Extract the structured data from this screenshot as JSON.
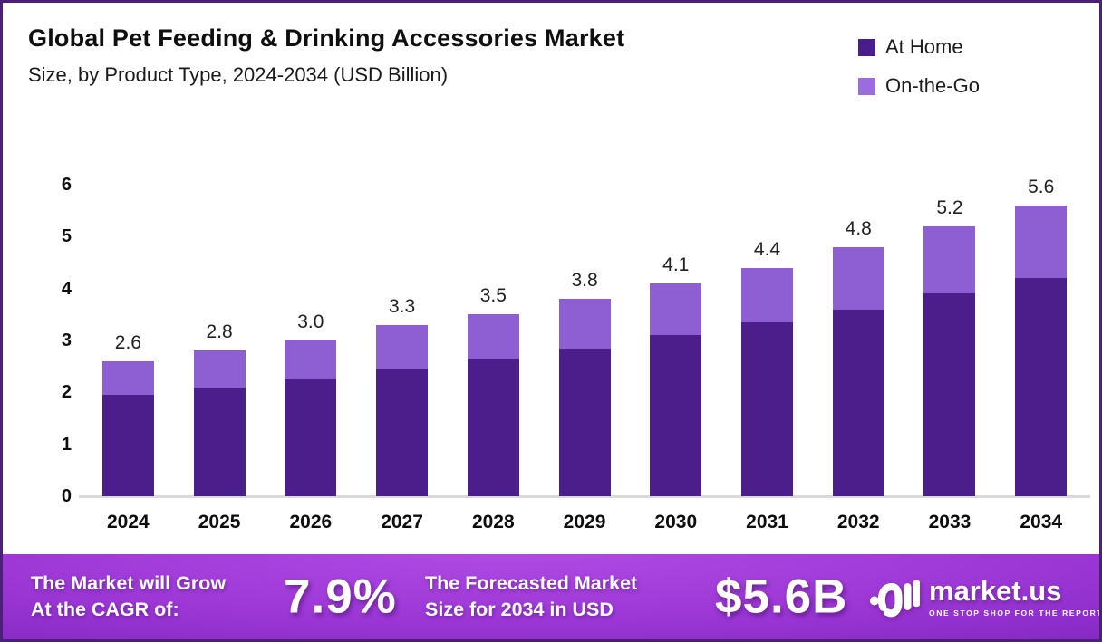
{
  "header": {
    "title": "Global Pet Feeding & Drinking Accessories Market",
    "subtitle": "Size, by Product Type, 2024-2034 (USD Billion)"
  },
  "legend": [
    {
      "label": "At Home",
      "color": "#4a1d8c"
    },
    {
      "label": "On-the-Go",
      "color": "#9b6bdf"
    }
  ],
  "chart_data": {
    "type": "bar",
    "stacked": true,
    "title": "Global Pet Feeding & Drinking Accessories Market Size, by Product Type, 2024-2034 (USD Billion)",
    "categories": [
      "2024",
      "2025",
      "2026",
      "2027",
      "2028",
      "2029",
      "2030",
      "2031",
      "2032",
      "2033",
      "2034"
    ],
    "series": [
      {
        "name": "At Home",
        "color": "#4b1e8c",
        "values": [
          1.95,
          2.1,
          2.25,
          2.45,
          2.65,
          2.85,
          3.1,
          3.35,
          3.6,
          3.9,
          4.2
        ]
      },
      {
        "name": "On-the-Go",
        "color": "#8e5fd3",
        "values": [
          0.65,
          0.7,
          0.75,
          0.85,
          0.85,
          0.95,
          1.0,
          1.05,
          1.2,
          1.3,
          1.4
        ]
      }
    ],
    "totals": [
      2.6,
      2.8,
      3.0,
      3.3,
      3.5,
      3.8,
      4.1,
      4.4,
      4.8,
      5.2,
      5.6
    ],
    "total_labels": [
      "2.6",
      "2.8",
      "3.0",
      "3.3",
      "3.5",
      "3.8",
      "4.1",
      "4.4",
      "4.8",
      "5.2",
      "5.6"
    ],
    "xlabel": "",
    "ylabel": "",
    "ylim": [
      0,
      6
    ],
    "yticks": [
      0,
      1,
      2,
      3,
      4,
      5,
      6
    ],
    "grid": false,
    "legend_position": "top-right"
  },
  "footer": {
    "cagr_label": "The Market will Grow\nAt the CAGR of:",
    "cagr_value": "7.9%",
    "forecast_label": "The Forecasted Market\nSize for 2034 in USD",
    "forecast_value": "$5.6B",
    "logo_text": "market.us",
    "logo_tagline": "ONE STOP SHOP FOR THE REPORTS"
  },
  "colors": {
    "at_home": "#4b1e8c",
    "on_the_go": "#8e5fd3",
    "frame_border": "#4b2077",
    "baseline": "#d9d9d9",
    "footer_gradient_center": "#a83fe0",
    "footer_gradient_edge": "#6b18a0"
  }
}
